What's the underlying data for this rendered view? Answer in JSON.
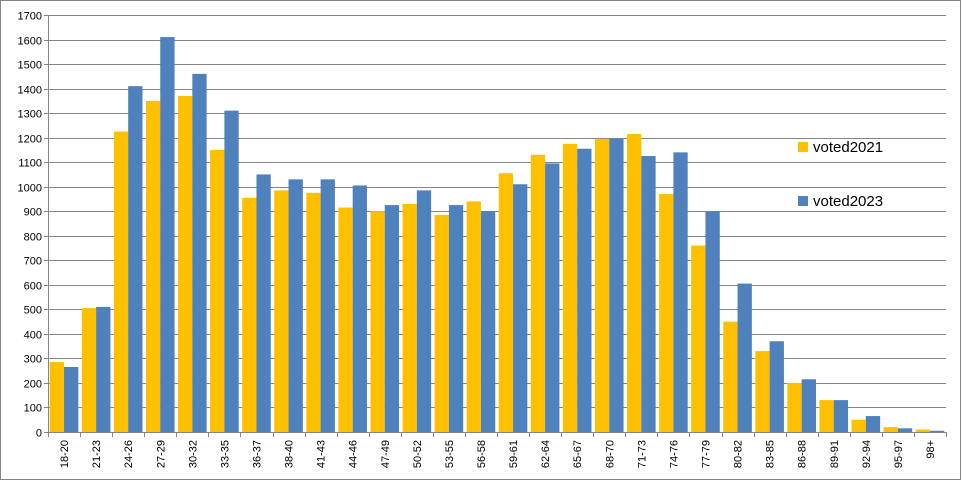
{
  "chart_data": {
    "type": "bar",
    "categories": [
      "18-20",
      "21-23",
      "24-26",
      "27-29",
      "30-32",
      "33-35",
      "36-37",
      "38-40",
      "41-43",
      "44-46",
      "47-49",
      "50-52",
      "53-55",
      "56-58",
      "59-61",
      "62-64",
      "65-67",
      "68-70",
      "71-73",
      "74-76",
      "77-79",
      "80-82",
      "83-85",
      "86-88",
      "89-91",
      "92-94",
      "95-97",
      "98+"
    ],
    "series": [
      {
        "name": "voted2021",
        "color": "#FFC000",
        "values": [
          285,
          505,
          1225,
          1350,
          1370,
          1150,
          955,
          985,
          975,
          915,
          900,
          930,
          885,
          940,
          1055,
          1130,
          1175,
          1195,
          1215,
          970,
          760,
          450,
          330,
          200,
          130,
          50,
          20,
          10
        ]
      },
      {
        "name": "voted2023",
        "color": "#4F81BD",
        "values": [
          265,
          510,
          1410,
          1610,
          1460,
          1310,
          1050,
          1030,
          1030,
          1005,
          925,
          985,
          925,
          900,
          1010,
          1095,
          1155,
          1195,
          1125,
          1140,
          900,
          605,
          370,
          215,
          130,
          65,
          15,
          5
        ]
      }
    ],
    "ylim": [
      0,
      1700
    ],
    "yticks": [
      0,
      100,
      200,
      300,
      400,
      500,
      600,
      700,
      800,
      900,
      1000,
      1100,
      1200,
      1300,
      1400,
      1500,
      1600,
      1700
    ],
    "grid": true,
    "legend_position": "right"
  }
}
